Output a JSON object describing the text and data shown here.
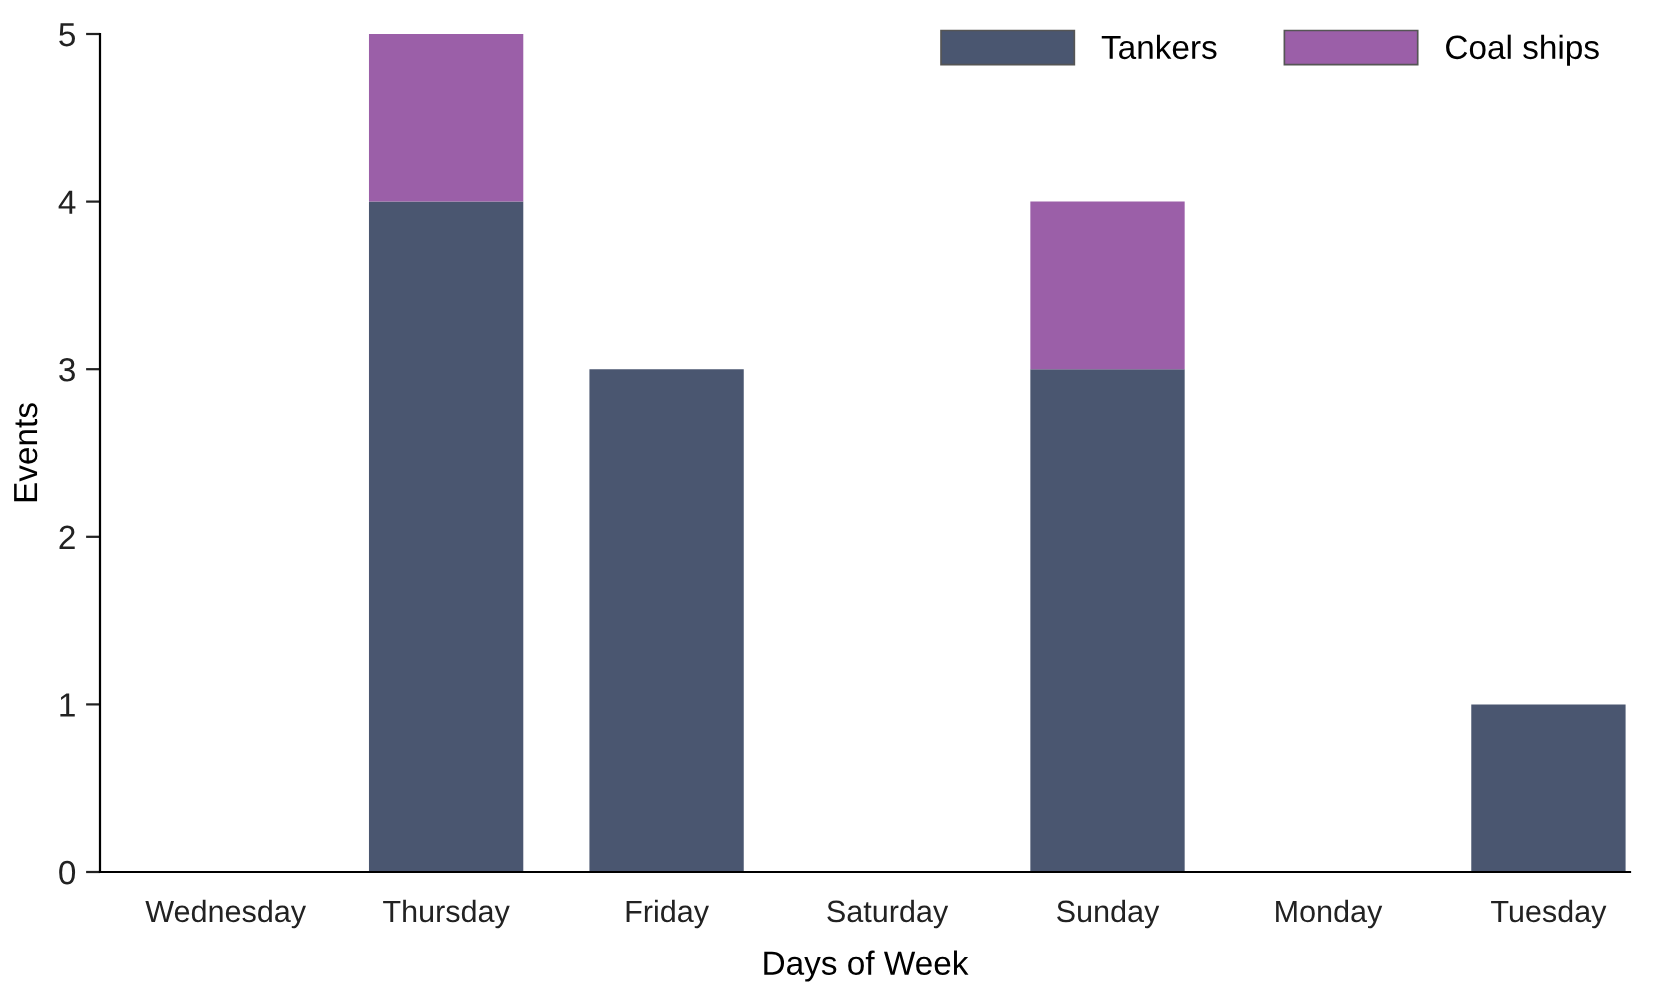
{
  "chart_data": {
    "type": "bar",
    "xlabel": "Days of Week",
    "ylabel": "Events",
    "categories": [
      "Wednesday",
      "Thursday",
      "Friday",
      "Saturday",
      "Sunday",
      "Monday",
      "Tuesday"
    ],
    "stacked": true,
    "series": [
      {
        "name": "Tankers",
        "color": "#4a5670",
        "values": [
          0,
          4,
          3,
          0,
          3,
          0,
          1
        ]
      },
      {
        "name": "Coal ships",
        "color": "#9b5fa8",
        "values": [
          0,
          1,
          0,
          0,
          1,
          0,
          0
        ]
      }
    ],
    "ylim": [
      0,
      5
    ],
    "yticks": [
      0,
      1,
      2,
      3,
      4,
      5
    ],
    "grid": false,
    "legend": "top right"
  }
}
